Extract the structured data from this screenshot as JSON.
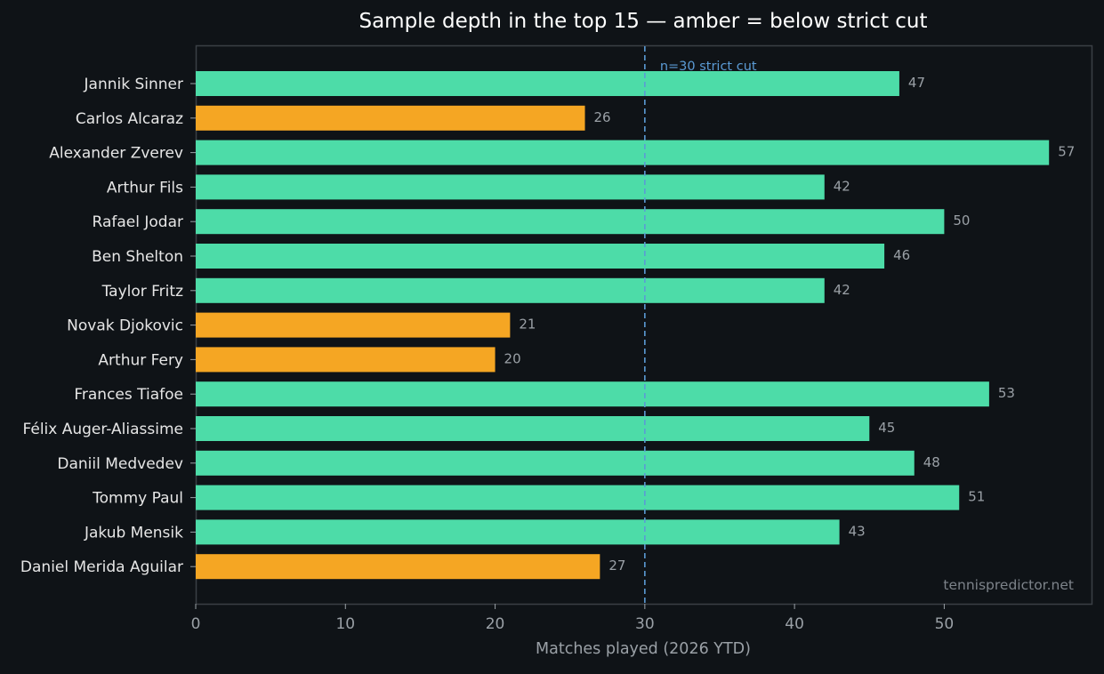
{
  "colors": {
    "background": "#0f1317",
    "plot_border": "#3a3f45",
    "above_cut": "#4ddca8",
    "below_cut": "#f5a623",
    "reference_line": "#5b9bd5",
    "title_text": "#ffffff",
    "label_text": "#e6e6e6",
    "muted_text": "#9aa0a6",
    "watermark_text": "#7d838a"
  },
  "chart_data": {
    "type": "bar",
    "orientation": "horizontal",
    "title": "Sample depth in the top 15 — amber = below strict cut",
    "xlabel": "Matches played (2026 YTD)",
    "ylabel": "",
    "xlim": [
      0,
      59.9
    ],
    "xticks": [
      0,
      10,
      20,
      30,
      40,
      50
    ],
    "grid": false,
    "categories": [
      "Jannik Sinner",
      "Carlos Alcaraz",
      "Alexander Zverev",
      "Arthur Fils",
      "Rafael Jodar",
      "Ben Shelton",
      "Taylor Fritz",
      "Novak Djokovic",
      "Arthur Fery",
      "Frances Tiafoe",
      "Félix Auger-Aliassime",
      "Daniil Medvedev",
      "Tommy Paul",
      "Jakub Mensik",
      "Daniel Merida Aguilar"
    ],
    "values": [
      47,
      26,
      57,
      42,
      50,
      46,
      42,
      21,
      20,
      53,
      45,
      48,
      51,
      43,
      27
    ],
    "reference_line": {
      "value": 30,
      "label": "n=30 strict cut"
    },
    "watermark": "tennispredictor.net"
  }
}
